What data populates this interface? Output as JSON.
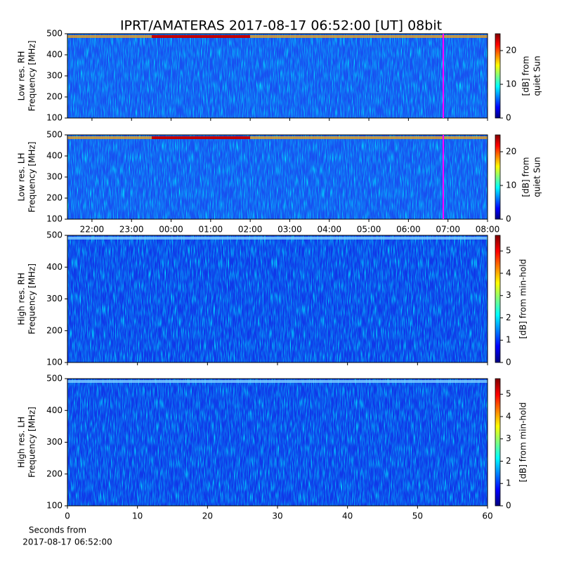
{
  "title": "IPRT/AMATERAS 2017-08-17 06:52:00 [UT]   08bit",
  "chart_data": [
    {
      "type": "heatmap",
      "ylabel": [
        "Low res. RH",
        "Frequency [MHz]"
      ],
      "ylim": [
        100,
        500
      ],
      "yticks": [
        100,
        200,
        300,
        400,
        500
      ],
      "colormap": "jet",
      "colorbar": {
        "label": [
          "[dB] from",
          "quiet Sun"
        ],
        "lim": [
          0,
          25
        ],
        "ticks": [
          0,
          10,
          20
        ]
      }
    },
    {
      "type": "heatmap",
      "ylabel": [
        "Low res. LH",
        "Frequency [MHz]"
      ],
      "ylim": [
        100,
        500
      ],
      "yticks": [
        100,
        200,
        300,
        400,
        500
      ],
      "colormap": "jet",
      "xlim": [
        21.38,
        32
      ],
      "xticks": [
        {
          "value": 22,
          "label": "22:00"
        },
        {
          "value": 23,
          "label": "23:00"
        },
        {
          "value": 24,
          "label": "00:00"
        },
        {
          "value": 25,
          "label": "01:00"
        },
        {
          "value": 26,
          "label": "02:00"
        },
        {
          "value": 27,
          "label": "03:00"
        },
        {
          "value": 28,
          "label": "04:00"
        },
        {
          "value": 29,
          "label": "05:00"
        },
        {
          "value": 30,
          "label": "06:00"
        },
        {
          "value": 31,
          "label": "07:00"
        },
        {
          "value": 32,
          "label": "08:00"
        }
      ],
      "colorbar": {
        "label": [
          "[dB] from",
          "quiet Sun"
        ],
        "lim": [
          0,
          25
        ],
        "ticks": [
          0,
          10,
          20
        ]
      }
    },
    {
      "type": "heatmap",
      "ylabel": [
        "High res. RH",
        "Frequency [MHz]"
      ],
      "ylim": [
        100,
        500
      ],
      "yticks": [
        100,
        200,
        300,
        400,
        500
      ],
      "colormap": "jet",
      "colorbar": {
        "label": [
          "[dB] from min-hold"
        ],
        "lim": [
          0,
          5.7
        ],
        "ticks": [
          0,
          1,
          2,
          3,
          4,
          5
        ]
      }
    },
    {
      "type": "heatmap",
      "ylabel": [
        "High res. LH",
        "Frequency [MHz]"
      ],
      "ylim": [
        100,
        500
      ],
      "yticks": [
        100,
        200,
        300,
        400,
        500
      ],
      "colormap": "jet",
      "xlim": [
        0,
        60
      ],
      "xticks": [
        0,
        10,
        20,
        30,
        40,
        50,
        60
      ],
      "xlabel": [
        "Seconds from",
        "2017-08-17 06:52:00"
      ],
      "colorbar": {
        "label": [
          "[dB] from min-hold"
        ],
        "lim": [
          0,
          5.7
        ],
        "ticks": [
          0,
          1,
          2,
          3,
          4,
          5
        ]
      }
    }
  ]
}
